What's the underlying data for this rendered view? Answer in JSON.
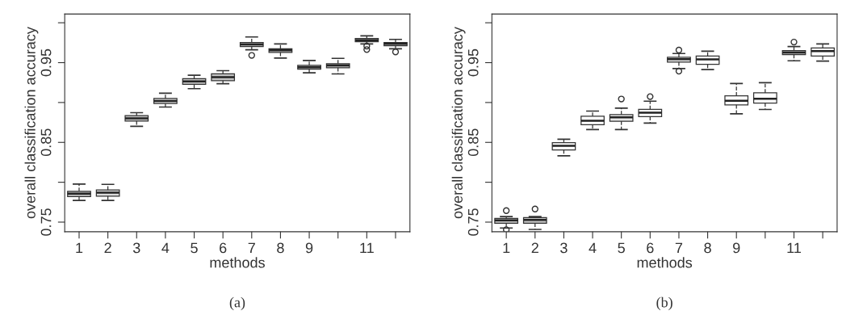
{
  "chart_data": [
    {
      "type": "box",
      "xlabel": "methods",
      "ylabel": "overall classification accuracy",
      "annotations": [
        "(a)"
      ],
      "categories": [
        "1",
        "2",
        "3",
        "4",
        "5",
        "6",
        "7",
        "8",
        "9",
        null,
        "11",
        null
      ],
      "ylim": [
        0.738,
        1.011
      ],
      "yticks": [
        0.75,
        {
          "value": 0.8,
          "label": null
        },
        0.85,
        {
          "value": 0.9,
          "label": null
        },
        0.95,
        {
          "value": 1.0,
          "label": null
        }
      ],
      "grid": false,
      "line_style": "dashed",
      "colors": [
        "#c4c4c4",
        "#dcdcdc",
        "#c4c4c4",
        "#dcdcdc",
        "#c4c4c4",
        "#c4c4c4",
        "#c4c4c4",
        "#dcdcdc",
        "#c4c4c4",
        "#c4c4c4",
        "#c4c4c4",
        "#c4c4c4"
      ],
      "boxes": [
        {
          "low": 0.7772,
          "q1": 0.7819,
          "median": 0.7856,
          "q3": 0.7886,
          "high": 0.7977
        },
        {
          "low": 0.7772,
          "q1": 0.7826,
          "median": 0.7869,
          "q3": 0.7903,
          "high": 0.7973
        },
        {
          "low": 0.8701,
          "q1": 0.8768,
          "median": 0.8802,
          "q3": 0.8836,
          "high": 0.8872
        },
        {
          "low": 0.8943,
          "q1": 0.8987,
          "median": 0.902,
          "q3": 0.905,
          "high": 0.9117
        },
        {
          "low": 0.9174,
          "q1": 0.9228,
          "median": 0.9265,
          "q3": 0.9299,
          "high": 0.9342
        },
        {
          "low": 0.9235,
          "q1": 0.9275,
          "median": 0.9319,
          "q3": 0.9359,
          "high": 0.9399
        },
        {
          "low": 0.9661,
          "q1": 0.9701,
          "median": 0.9728,
          "q3": 0.9752,
          "high": 0.9822,
          "outliers": [
            0.9591
          ]
        },
        {
          "low": 0.9557,
          "q1": 0.9628,
          "median": 0.9654,
          "q3": 0.9674,
          "high": 0.9735
        },
        {
          "low": 0.9372,
          "q1": 0.9419,
          "median": 0.9443,
          "q3": 0.9466,
          "high": 0.9527
        },
        {
          "low": 0.9359,
          "q1": 0.9436,
          "median": 0.9466,
          "q3": 0.9487,
          "high": 0.9554
        },
        {
          "low": 0.9735,
          "q1": 0.9762,
          "median": 0.9782,
          "q3": 0.9802,
          "high": 0.9836,
          "outliers": [
            0.9708,
            0.9664
          ]
        },
        {
          "low": 0.9674,
          "q1": 0.9711,
          "median": 0.9735,
          "q3": 0.9752,
          "high": 0.9792,
          "outliers": [
            0.9634
          ]
        }
      ]
    },
    {
      "type": "box",
      "xlabel": "methods",
      "ylabel": "overall classification accuracy",
      "annotations": [
        "(b)"
      ],
      "categories": [
        "1",
        "2",
        "3",
        "4",
        "5",
        "6",
        "7",
        "8",
        "9",
        null,
        "11",
        null
      ],
      "ylim": [
        0.738,
        1.011
      ],
      "yticks": [
        0.75,
        {
          "value": 0.8,
          "label": null
        },
        0.85,
        {
          "value": 0.9,
          "label": null
        },
        0.95,
        {
          "value": 1.0,
          "label": null
        }
      ],
      "grid": false,
      "line_style": "dashed",
      "colors": [
        "#c4c4c4",
        "#c4c4c4",
        "#ffffff",
        "#ffffff",
        "#e6e6e6",
        "#ffffff",
        "#e6e6e6",
        "#ffffff",
        "#ffffff",
        "#ffffff",
        "#c4c4c4",
        "#ffffff"
      ],
      "boxes": [
        {
          "low": 0.7426,
          "q1": 0.7487,
          "median": 0.7523,
          "q3": 0.7547,
          "high": 0.757,
          "outliers": [
            0.7644,
            0.7405
          ]
        },
        {
          "low": 0.7409,
          "q1": 0.7487,
          "median": 0.7527,
          "q3": 0.7557,
          "high": 0.757,
          "outliers": [
            0.7664
          ]
        },
        {
          "low": 0.8332,
          "q1": 0.8406,
          "median": 0.8456,
          "q3": 0.8497,
          "high": 0.854
        },
        {
          "low": 0.8661,
          "q1": 0.8721,
          "median": 0.8772,
          "q3": 0.8829,
          "high": 0.8893
        },
        {
          "low": 0.8661,
          "q1": 0.8765,
          "median": 0.8815,
          "q3": 0.8849,
          "high": 0.893,
          "outliers": [
            0.9044
          ]
        },
        {
          "low": 0.8742,
          "q1": 0.8822,
          "median": 0.8872,
          "q3": 0.8913,
          "high": 0.9017,
          "outliers": [
            0.9074
          ]
        },
        {
          "low": 0.9426,
          "q1": 0.9507,
          "median": 0.9544,
          "q3": 0.9567,
          "high": 0.9614,
          "outliers": [
            0.9658,
            0.9393
          ]
        },
        {
          "low": 0.9413,
          "q1": 0.948,
          "median": 0.954,
          "q3": 0.9584,
          "high": 0.9644
        },
        {
          "low": 0.8859,
          "q1": 0.897,
          "median": 0.9023,
          "q3": 0.9084,
          "high": 0.9238
        },
        {
          "low": 0.8913,
          "q1": 0.8993,
          "median": 0.9047,
          "q3": 0.9121,
          "high": 0.9248
        },
        {
          "low": 0.9523,
          "q1": 0.9601,
          "median": 0.9628,
          "q3": 0.9651,
          "high": 0.9701,
          "outliers": [
            0.9758
          ]
        },
        {
          "low": 0.952,
          "q1": 0.9584,
          "median": 0.9644,
          "q3": 0.9685,
          "high": 0.9735
        }
      ]
    }
  ]
}
